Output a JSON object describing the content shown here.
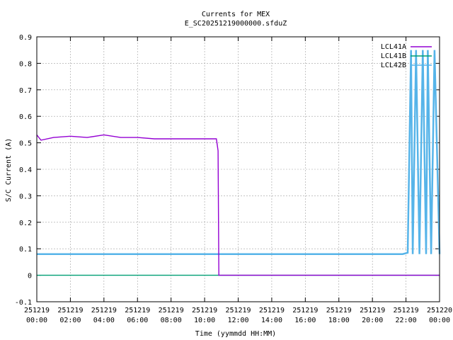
{
  "chart_data": {
    "type": "line",
    "title": "Currents for MEX",
    "subtitle": "E_SC20251219000000.sfduZ",
    "xlabel": "Time (yymmdd HH:MM)",
    "ylabel": "S/C Current (A)",
    "x_unit": "hours since 251219 00:00",
    "xlim": [
      0,
      24
    ],
    "ylim": [
      -0.1,
      0.9
    ],
    "grid": true,
    "legend_position": "top-right",
    "x_ticks": [
      {
        "x": 0,
        "date": "251219",
        "time": "00:00"
      },
      {
        "x": 2,
        "date": "251219",
        "time": "02:00"
      },
      {
        "x": 4,
        "date": "251219",
        "time": "04:00"
      },
      {
        "x": 6,
        "date": "251219",
        "time": "06:00"
      },
      {
        "x": 8,
        "date": "251219",
        "time": "08:00"
      },
      {
        "x": 10,
        "date": "251219",
        "time": "10:00"
      },
      {
        "x": 12,
        "date": "251219",
        "time": "12:00"
      },
      {
        "x": 14,
        "date": "251219",
        "time": "14:00"
      },
      {
        "x": 16,
        "date": "251219",
        "time": "16:00"
      },
      {
        "x": 18,
        "date": "251219",
        "time": "18:00"
      },
      {
        "x": 20,
        "date": "251219",
        "time": "20:00"
      },
      {
        "x": 22,
        "date": "251219",
        "time": "22:00"
      },
      {
        "x": 24,
        "date": "251220",
        "time": "00:00"
      }
    ],
    "y_ticks": [
      -0.1,
      0,
      0.1,
      0.2,
      0.3,
      0.4,
      0.5,
      0.6,
      0.7,
      0.8,
      0.9
    ],
    "series": [
      {
        "name": "LCL41A",
        "color": "#9400d3",
        "points": [
          [
            0.0,
            0.53
          ],
          [
            0.25,
            0.51
          ],
          [
            1.0,
            0.52
          ],
          [
            2.0,
            0.525
          ],
          [
            3.0,
            0.52
          ],
          [
            4.0,
            0.53
          ],
          [
            5.0,
            0.52
          ],
          [
            6.0,
            0.52
          ],
          [
            7.0,
            0.515
          ],
          [
            8.0,
            0.515
          ],
          [
            9.0,
            0.515
          ],
          [
            10.0,
            0.515
          ],
          [
            10.7,
            0.515
          ],
          [
            10.8,
            0.47
          ],
          [
            10.85,
            0.0
          ],
          [
            14.0,
            0.0
          ],
          [
            18.0,
            0.0
          ],
          [
            21.0,
            0.0
          ],
          [
            22.0,
            0.0
          ],
          [
            24.0,
            0.0
          ]
        ]
      },
      {
        "name": "LCL41B",
        "color": "#009e73",
        "points": [
          [
            0.0,
            0.0
          ],
          [
            6.0,
            0.0
          ],
          [
            12.0,
            0.0
          ],
          [
            18.0,
            0.0
          ],
          [
            21.0,
            0.0
          ],
          [
            24.0,
            0.0
          ]
        ]
      },
      {
        "name": "LCL42B",
        "color": "#56b4e9",
        "points": [
          [
            0.0,
            0.08
          ],
          [
            4.0,
            0.08
          ],
          [
            8.0,
            0.08
          ],
          [
            12.0,
            0.08
          ],
          [
            16.0,
            0.08
          ],
          [
            20.0,
            0.08
          ],
          [
            21.8,
            0.08
          ],
          [
            22.1,
            0.085
          ],
          [
            22.3,
            0.85
          ],
          [
            22.4,
            0.08
          ],
          [
            22.6,
            0.85
          ],
          [
            22.8,
            0.08
          ],
          [
            23.0,
            0.85
          ],
          [
            23.2,
            0.08
          ],
          [
            23.3,
            0.85
          ],
          [
            23.5,
            0.08
          ],
          [
            23.7,
            0.85
          ],
          [
            24.0,
            0.08
          ]
        ]
      }
    ]
  }
}
